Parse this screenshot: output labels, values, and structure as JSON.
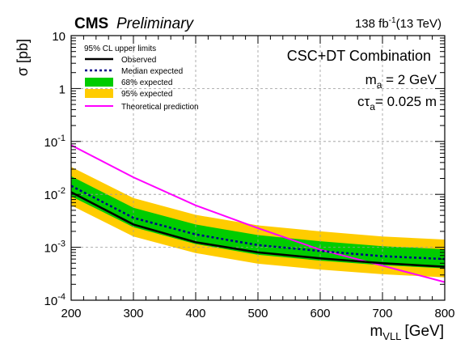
{
  "header": {
    "experiment": "CMS",
    "status": "Preliminary",
    "lumi_value": "138 fb",
    "lumi_exp": "-1",
    "lumi_energy": "(13 TeV)"
  },
  "annotations": {
    "combination": "CSC+DT Combination",
    "mass_sym": "m",
    "mass_sub": "a",
    "mass_rest": " = 2 GeV",
    "ctau_c": "c",
    "ctau_tau": "τ",
    "ctau_sub": "a",
    "ctau_rest": "= 0.025 m"
  },
  "legend": {
    "header": "95% CL upper limits",
    "observed": "Observed",
    "median": "Median expected",
    "band68": "68% expected",
    "band95": "95% expected",
    "theory": "Theoretical prediction"
  },
  "colors": {
    "observed": "#000000",
    "median": "#00008B",
    "band68": "#00CC00",
    "band95": "#FFCC00",
    "theory": "#FF00FF"
  },
  "chart_data": {
    "type": "line",
    "xlabel_main": "m",
    "xlabel_sub": "VLL",
    "xlabel_unit": "[GeV]",
    "ylabel": "σ [pb]",
    "xlim": [
      200,
      800
    ],
    "ylim": [
      0.0001,
      10
    ],
    "y_scale": "log",
    "grid": true,
    "legend_position": "top-left",
    "x_ticks": [
      "200",
      "300",
      "400",
      "500",
      "600",
      "700",
      "800"
    ],
    "x": [
      200,
      300,
      400,
      500,
      600,
      700,
      800
    ],
    "observed": [
      0.011,
      0.0027,
      0.00125,
      0.0008,
      0.00062,
      0.0005,
      0.00043
    ],
    "median": [
      0.0145,
      0.0036,
      0.00175,
      0.0011,
      0.00085,
      0.00068,
      0.0006
    ],
    "band68": {
      "low": [
        0.0092,
        0.0024,
        0.00115,
        0.00072,
        0.00056,
        0.00046,
        0.0004
      ],
      "high": [
        0.022,
        0.0056,
        0.0027,
        0.0017,
        0.0013,
        0.00105,
        0.00092
      ]
    },
    "band95": {
      "low": [
        0.0062,
        0.0016,
        0.00078,
        0.00049,
        0.00038,
        0.00031,
        0.00027
      ],
      "high": [
        0.033,
        0.0085,
        0.0041,
        0.0026,
        0.002,
        0.0016,
        0.0014
      ]
    },
    "theory_x": [
      200,
      300,
      400,
      500,
      600,
      700,
      800
    ],
    "theory": [
      0.085,
      0.021,
      0.0062,
      0.0023,
      0.0009,
      0.00045,
      0.00022
    ]
  }
}
